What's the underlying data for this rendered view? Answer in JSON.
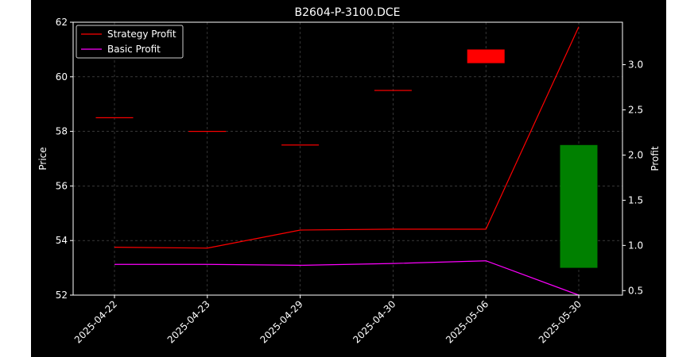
{
  "chart_data": {
    "type": "candlestick-with-line",
    "title": "B2604-P-3100.DCE",
    "xlabel": "",
    "ylabel_left": "Price",
    "ylabel_right": "Profit",
    "categories": [
      "2025-04-22",
      "2025-04-23",
      "2025-04-29",
      "2025-04-30",
      "2025-05-06",
      "2025-05-30"
    ],
    "ylim_left": [
      52,
      62
    ],
    "ylim_right": [
      0.45,
      3.47
    ],
    "yticks_left": [
      52,
      54,
      56,
      58,
      60,
      62
    ],
    "yticks_right": [
      0.5,
      1.0,
      1.5,
      2.0,
      2.5,
      3.0
    ],
    "grid": true,
    "legend_position": "top-left",
    "candles": [
      {
        "open": 58.5,
        "close": 58.5,
        "color": "#ff0000"
      },
      {
        "open": 58.0,
        "close": 58.0,
        "color": "#ff0000"
      },
      {
        "open": 57.5,
        "close": 57.5,
        "color": "#ff0000"
      },
      {
        "open": 59.5,
        "close": 59.5,
        "color": "#ff0000"
      },
      {
        "open": 61.0,
        "close": 60.5,
        "color": "#ff0000"
      },
      {
        "open": 53.0,
        "close": 57.5,
        "color": "#008000"
      }
    ],
    "series": [
      {
        "name": "Strategy Profit",
        "color": "#ff0000",
        "values": [
          0.98,
          0.97,
          1.17,
          1.18,
          1.18,
          3.42
        ]
      },
      {
        "name": "Basic Profit",
        "color": "#ff00ff",
        "values": [
          0.79,
          0.79,
          0.78,
          0.8,
          0.83,
          0.45
        ]
      }
    ]
  }
}
